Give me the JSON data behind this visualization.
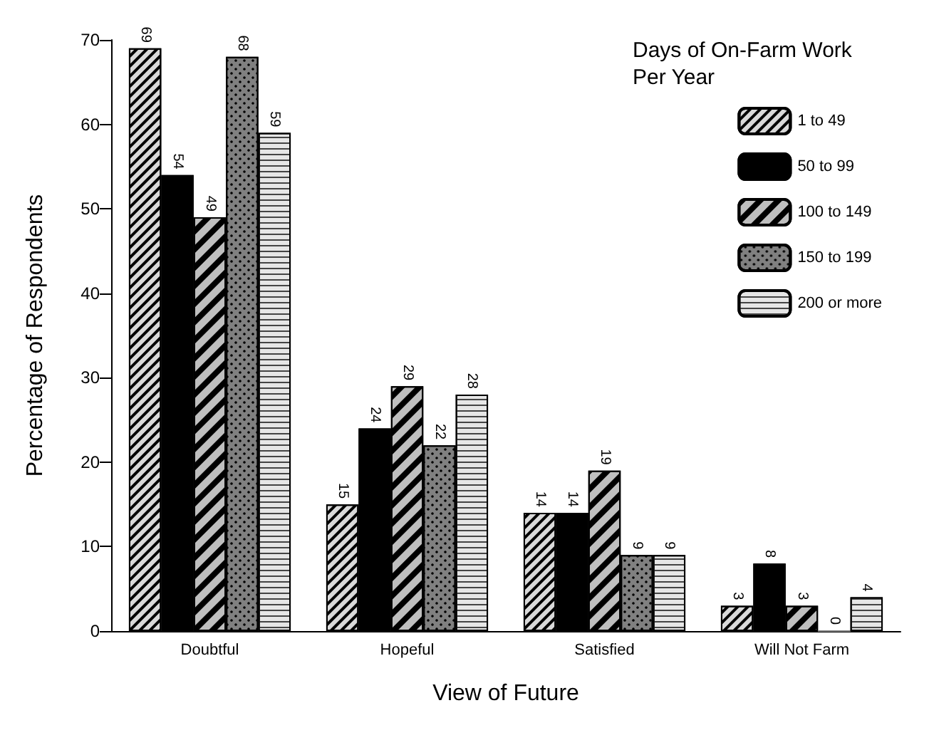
{
  "chart_data": {
    "type": "bar",
    "xlabel": "View of Future",
    "ylabel": "Percentage of Respondents",
    "legend_title": "Days of On-Farm Work\nPer Year",
    "categories": [
      "Doubtful",
      "Hopeful",
      "Satisfied",
      "Will Not Farm"
    ],
    "series": [
      {
        "name": "1 to 49",
        "color": "#d9d9d9",
        "values": [
          69,
          15,
          14,
          3
        ]
      },
      {
        "name": "50 to 99",
        "color": "#000000",
        "values": [
          54,
          24,
          14,
          8
        ]
      },
      {
        "name": "100 to 149",
        "color": "#bfbfbf",
        "values": [
          49,
          29,
          19,
          3
        ]
      },
      {
        "name": "150 to 199",
        "color": "#808080",
        "values": [
          68,
          22,
          9,
          0
        ]
      },
      {
        "name": "200 or more",
        "color": "#e6e6e6",
        "values": [
          59,
          28,
          9,
          4
        ]
      }
    ],
    "ylim": [
      0,
      70
    ],
    "yticks": [
      0,
      10,
      20,
      30,
      40,
      50,
      60,
      70
    ],
    "grid": false,
    "legend": "top right",
    "data_labels": true
  }
}
